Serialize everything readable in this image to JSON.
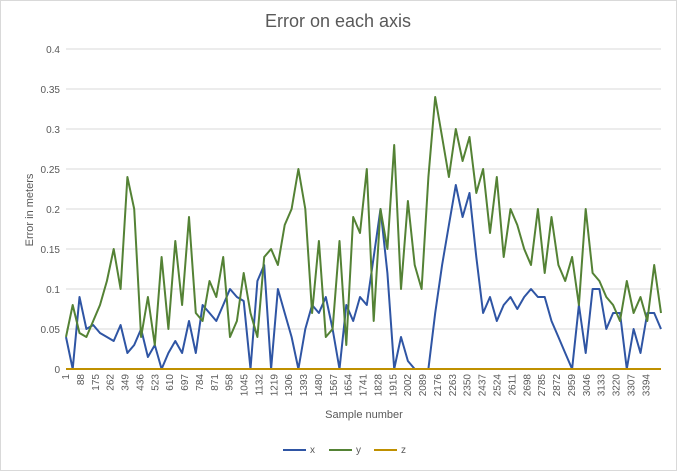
{
  "chart_data": {
    "type": "line",
    "title": "Error on each axis",
    "xlabel": "Sample number",
    "ylabel": "Error in meters",
    "ylim": [
      0,
      0.4
    ],
    "yticks": [
      "0",
      "0.05",
      "0.1",
      "0.15",
      "0.2",
      "0.25",
      "0.3",
      "0.35",
      "0.4"
    ],
    "xlim": [
      1,
      3480
    ],
    "xticks": [
      1,
      88,
      175,
      262,
      349,
      436,
      523,
      610,
      697,
      784,
      871,
      958,
      1045,
      1132,
      1219,
      1306,
      1393,
      1480,
      1567,
      1654,
      1741,
      1828,
      1915,
      2002,
      2089,
      2176,
      2263,
      2350,
      2437,
      2524,
      2611,
      2698,
      2785,
      2872,
      2959,
      3046,
      3133,
      3220,
      3307,
      3394
    ],
    "grid": true,
    "legend": "bottom",
    "series": [
      {
        "name": "x",
        "color": "#2f55a4",
        "x": [
          1,
          40,
          80,
          120,
          160,
          200,
          240,
          280,
          320,
          360,
          400,
          440,
          480,
          520,
          560,
          600,
          640,
          680,
          720,
          760,
          800,
          840,
          880,
          920,
          960,
          1000,
          1040,
          1080,
          1120,
          1160,
          1200,
          1240,
          1280,
          1320,
          1360,
          1400,
          1440,
          1480,
          1520,
          1560,
          1600,
          1640,
          1680,
          1720,
          1760,
          1800,
          1840,
          1880,
          1920,
          1960,
          2000,
          2040,
          2080,
          2120,
          2160,
          2200,
          2240,
          2280,
          2320,
          2360,
          2400,
          2440,
          2480,
          2520,
          2560,
          2600,
          2640,
          2680,
          2720,
          2760,
          2800,
          2840,
          2880,
          2920,
          2960,
          3000,
          3040,
          3080,
          3120,
          3160,
          3200,
          3240,
          3280,
          3320,
          3360,
          3400,
          3440,
          3480
        ],
        "y": [
          0.04,
          0.0,
          0.09,
          0.05,
          0.055,
          0.045,
          0.04,
          0.035,
          0.055,
          0.02,
          0.03,
          0.05,
          0.015,
          0.03,
          0.0,
          0.02,
          0.035,
          0.02,
          0.06,
          0.02,
          0.08,
          0.07,
          0.06,
          0.08,
          0.1,
          0.09,
          0.085,
          0.0,
          0.11,
          0.13,
          0.0,
          0.1,
          0.07,
          0.04,
          0.0,
          0.05,
          0.08,
          0.07,
          0.09,
          0.05,
          0.0,
          0.08,
          0.06,
          0.09,
          0.08,
          0.14,
          0.2,
          0.12,
          0.0,
          0.04,
          0.01,
          0.0,
          0.0,
          0.0,
          0.07,
          0.13,
          0.18,
          0.23,
          0.19,
          0.22,
          0.14,
          0.07,
          0.09,
          0.06,
          0.08,
          0.09,
          0.075,
          0.09,
          0.1,
          0.09,
          0.09,
          0.06,
          0.04,
          0.02,
          0.0,
          0.08,
          0.02,
          0.1,
          0.1,
          0.05,
          0.07,
          0.07,
          0.0,
          0.05,
          0.02,
          0.07,
          0.07,
          0.05
        ]
      },
      {
        "name": "y",
        "color": "#548235",
        "x": [
          1,
          40,
          80,
          120,
          160,
          200,
          240,
          280,
          320,
          360,
          400,
          440,
          480,
          520,
          560,
          600,
          640,
          680,
          720,
          760,
          800,
          840,
          880,
          920,
          960,
          1000,
          1040,
          1080,
          1120,
          1160,
          1200,
          1240,
          1280,
          1320,
          1360,
          1400,
          1440,
          1480,
          1520,
          1560,
          1600,
          1640,
          1680,
          1720,
          1760,
          1800,
          1840,
          1880,
          1920,
          1960,
          2000,
          2040,
          2080,
          2120,
          2160,
          2200,
          2240,
          2280,
          2320,
          2360,
          2400,
          2440,
          2480,
          2520,
          2560,
          2600,
          2640,
          2680,
          2720,
          2760,
          2800,
          2840,
          2880,
          2920,
          2960,
          3000,
          3040,
          3080,
          3120,
          3160,
          3200,
          3240,
          3280,
          3320,
          3360,
          3400,
          3440,
          3480
        ],
        "y": [
          0.04,
          0.08,
          0.045,
          0.04,
          0.06,
          0.08,
          0.11,
          0.15,
          0.1,
          0.24,
          0.2,
          0.04,
          0.09,
          0.03,
          0.14,
          0.05,
          0.16,
          0.08,
          0.19,
          0.07,
          0.06,
          0.11,
          0.09,
          0.14,
          0.04,
          0.06,
          0.12,
          0.07,
          0.04,
          0.14,
          0.15,
          0.13,
          0.18,
          0.2,
          0.25,
          0.2,
          0.07,
          0.16,
          0.04,
          0.05,
          0.16,
          0.03,
          0.19,
          0.17,
          0.25,
          0.06,
          0.2,
          0.15,
          0.28,
          0.1,
          0.21,
          0.13,
          0.1,
          0.24,
          0.34,
          0.29,
          0.24,
          0.3,
          0.26,
          0.29,
          0.22,
          0.25,
          0.17,
          0.24,
          0.14,
          0.2,
          0.18,
          0.15,
          0.13,
          0.2,
          0.12,
          0.19,
          0.13,
          0.11,
          0.14,
          0.08,
          0.2,
          0.12,
          0.11,
          0.09,
          0.08,
          0.06,
          0.11,
          0.07,
          0.09,
          0.06,
          0.13,
          0.07
        ]
      },
      {
        "name": "z",
        "color": "#bf9000",
        "x": [
          1,
          3480
        ],
        "y": [
          0,
          0
        ]
      }
    ]
  }
}
